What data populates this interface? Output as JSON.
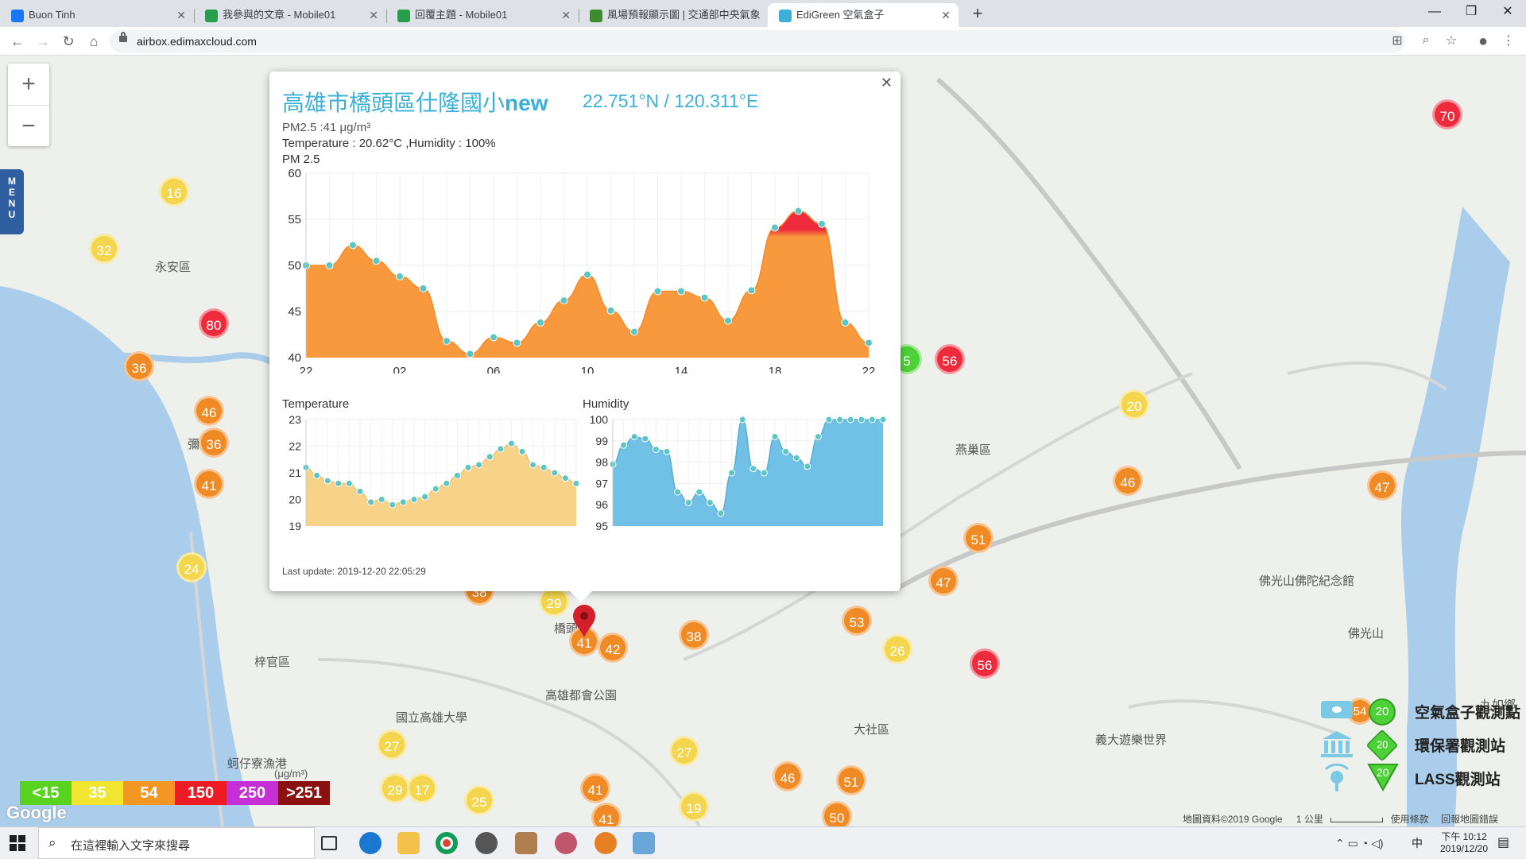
{
  "browser": {
    "tabs": [
      {
        "title": "Buon Tinh",
        "favicon": "facebook-icon",
        "color": "#1877f2",
        "active": false
      },
      {
        "title": "我參與的文章 - Mobile01",
        "favicon": "mobile01-icon",
        "color": "#2a9d4c",
        "active": false
      },
      {
        "title": "回覆主題 - Mobile01",
        "favicon": "mobile01-icon",
        "color": "#2a9d4c",
        "active": false
      },
      {
        "title": "風場預報顯示圖 | 交通部中央氣象",
        "favicon": "weather-icon",
        "color": "#3c8b2c",
        "active": false
      },
      {
        "title": "EdiGreen 空氣盒子",
        "favicon": "edigreen-icon",
        "color": "#3ab0d8",
        "active": true
      }
    ],
    "url": "airbox.edimaxcloud.com"
  },
  "map": {
    "labels": [
      "永安區",
      "彌",
      "梓官區",
      "橋頭",
      "國立高雄大學",
      "高雄都會公園",
      "大社區",
      "燕巢區",
      "蚵仔寮漁港",
      "義大遊樂世界",
      "佛光山佛陀紀念館",
      "佛光山",
      "九如鄉"
    ],
    "unit": "(μg/m³)"
  },
  "popup": {
    "title": "高雄市橋頭區仕隆國小",
    "title_suffix": "new",
    "coords": "22.751°N / 120.311°E",
    "pm25": "PM2.5 :41 μg/m³",
    "temp_hum": "Temperature : 20.62°C ,Humidity : 100%",
    "pm_label": "PM 2.5",
    "temp_label": "Temperature",
    "hum_label": "Humidity",
    "last_update": "Last update: 2019-12-20 22:05:29"
  },
  "chart_data": [
    {
      "type": "area",
      "title": "PM 2.5",
      "x": [
        "22",
        "23",
        "00",
        "01",
        "02",
        "03",
        "04",
        "05",
        "06",
        "07",
        "08",
        "09",
        "10",
        "11",
        "12",
        "13",
        "14",
        "15",
        "16",
        "17",
        "18",
        "19",
        "20",
        "21",
        "22"
      ],
      "x_ticks": [
        "22",
        "02",
        "06",
        "10",
        "14",
        "18",
        "22"
      ],
      "values": [
        50,
        50,
        52.2,
        50.5,
        48.8,
        47.5,
        41.8,
        40.4,
        42.2,
        41.6,
        43.8,
        46.2,
        49,
        45.1,
        42.8,
        47.2,
        47.2,
        46.5,
        44,
        47.3,
        54.1,
        55.9,
        54.5,
        43.8,
        41.6
      ],
      "ylim": [
        40,
        60
      ],
      "y_ticks": [
        40,
        45,
        50,
        55,
        60
      ],
      "color": "#f7993c",
      "high_color": "#ee2b3d"
    },
    {
      "type": "area",
      "title": "Temperature",
      "values": [
        21.2,
        20.9,
        20.7,
        20.6,
        20.6,
        20.3,
        19.9,
        20,
        19.8,
        19.9,
        20,
        20.1,
        20.4,
        20.6,
        20.9,
        21.2,
        21.3,
        21.6,
        21.9,
        22.1,
        21.8,
        21.3,
        21.2,
        21,
        20.8,
        20.6
      ],
      "ylim": [
        19,
        23
      ],
      "y_ticks": [
        19,
        20,
        21,
        22,
        23
      ],
      "color": "#f7d289"
    },
    {
      "type": "area",
      "title": "Humidity",
      "values": [
        97.9,
        98.8,
        99.2,
        99.1,
        98.6,
        98.5,
        96.6,
        96.1,
        96.6,
        96.1,
        95.6,
        97.5,
        100,
        97.7,
        97.5,
        99.2,
        98.5,
        98.2,
        97.8,
        99.2,
        100,
        100,
        100,
        100,
        100,
        100
      ],
      "ylim": [
        95,
        100
      ],
      "y_ticks": [
        95,
        96,
        97,
        98,
        99,
        100
      ],
      "color": "#71c0e6"
    }
  ],
  "legend": [
    {
      "label": "<15",
      "color": "#59d31e"
    },
    {
      "label": "35",
      "color": "#f1e530"
    },
    {
      "label": "54",
      "color": "#f39622"
    },
    {
      "label": "150",
      "color": "#ed1c24"
    },
    {
      "label": "250",
      "color": "#c72fd6"
    },
    {
      "label": ">251",
      "color": "#8b1010"
    }
  ],
  "right_legend": [
    {
      "label": "空氣盒子觀測點",
      "value": "20",
      "icon": "airbox-icon"
    },
    {
      "label": "環保署觀測站",
      "value": "20",
      "icon": "government-building-icon"
    },
    {
      "label": "LASS觀測站",
      "value": "20",
      "icon": "lass-station-icon"
    }
  ],
  "right_legend_marker": "54",
  "markers": [
    "70",
    "16",
    "32",
    "80",
    "36",
    "46",
    "36",
    "41",
    "24",
    "56",
    "5",
    "20",
    "46",
    "51",
    "47",
    "47",
    "38",
    "29",
    "41",
    "42",
    "38",
    "53",
    "26",
    "56",
    "27",
    "27",
    "29",
    "17",
    "25",
    "41",
    "46",
    "51",
    "19",
    "41",
    "50"
  ],
  "attribution": {
    "data": "地圖資料©2019 Google",
    "scale": "1 公里",
    "terms": "使用條款",
    "report": "回報地圖錯誤"
  },
  "google_logo": "Google",
  "menu_label": "MENU",
  "taskbar": {
    "search_placeholder": "在這裡輸入文字來搜尋",
    "time": "下午 10:12",
    "date": "2019/12/20",
    "ime": "中"
  }
}
